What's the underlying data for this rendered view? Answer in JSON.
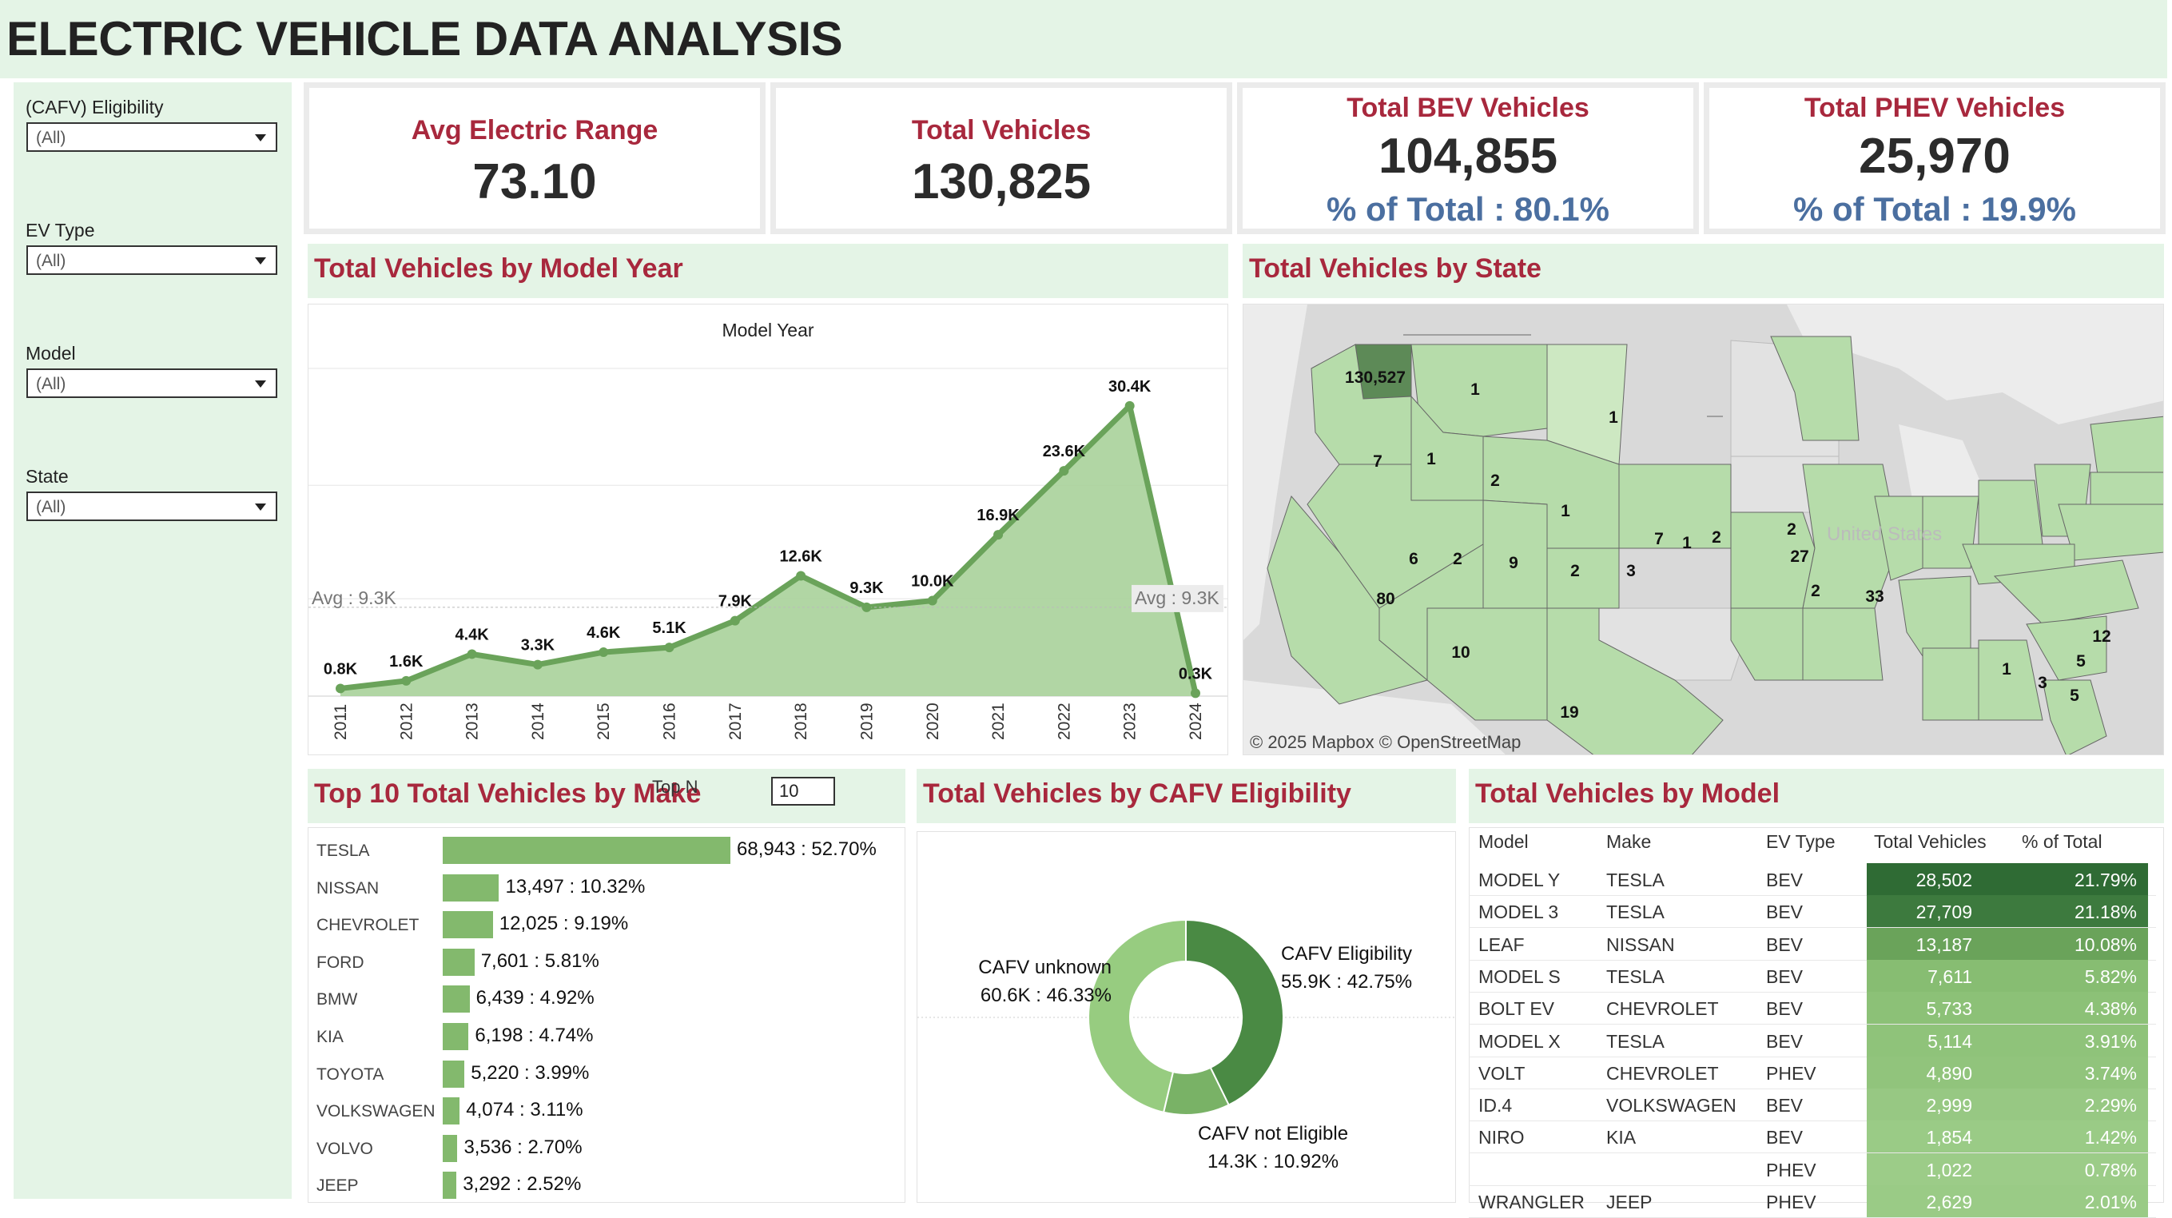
{
  "dashboard": {
    "title": "ELECTRIC VEHICLE DATA ANALYSIS"
  },
  "filters": [
    {
      "label": "(CAFV) Eligibility",
      "value": "(All)"
    },
    {
      "label": "EV Type",
      "value": "(All)"
    },
    {
      "label": "Model",
      "value": "(All)"
    },
    {
      "label": "State",
      "value": "(All)"
    }
  ],
  "kpis": {
    "avg_range": {
      "label": "Avg Electric Range",
      "value": "73.10"
    },
    "total": {
      "label": "Total Vehicles",
      "value": "130,825"
    },
    "bev": {
      "label": "Total BEV Vehicles",
      "value": "104,855",
      "pct": "% of Total : 80.1%"
    },
    "phev": {
      "label": "Total PHEV Vehicles",
      "value": "25,970",
      "pct": "% of Total : 19.9%"
    }
  },
  "sections": {
    "model_year": "Total Vehicles by Model Year",
    "state": "Total Vehicles by State",
    "make": "Top 10 Total Vehicles by Make",
    "cafv": "Total Vehicles by CAFV Eligibility",
    "model": "Total Vehicles by Model"
  },
  "chart_data": [
    {
      "type": "area",
      "title": "Model Year",
      "categories": [
        "2011",
        "2012",
        "2013",
        "2014",
        "2015",
        "2016",
        "2017",
        "2018",
        "2019",
        "2020",
        "2021",
        "2022",
        "2023",
        "2024"
      ],
      "values": [
        0.8,
        1.6,
        4.4,
        3.3,
        4.6,
        5.1,
        7.9,
        12.6,
        9.3,
        10.0,
        16.9,
        23.6,
        30.4,
        0.3
      ],
      "data_labels": [
        "0.8K",
        "1.6K",
        "4.4K",
        "3.3K",
        "4.6K",
        "5.1K",
        "7.9K",
        "12.6K",
        "9.3K",
        "10.0K",
        "16.9K",
        "23.6K",
        "30.4K",
        "0.3K"
      ],
      "reference_line": {
        "value": 9.3,
        "label": "Avg : 9.3K"
      },
      "ylim": [
        0,
        36
      ],
      "grid": true,
      "color": "#6aa35a"
    },
    {
      "type": "bar",
      "title": "Top 10 Total Vehicles by Make",
      "categories": [
        "TESLA",
        "NISSAN",
        "CHEVROLET",
        "FORD",
        "BMW",
        "KIA",
        "TOYOTA",
        "VOLKSWAGEN",
        "VOLVO",
        "JEEP"
      ],
      "values": [
        68943,
        13497,
        12025,
        7601,
        6439,
        6198,
        5220,
        4074,
        3536,
        3292
      ],
      "labels": [
        "68,943 : 52.70%",
        "13,497 : 10.32%",
        "12,025 : 9.19%",
        "7,601 : 5.81%",
        "6,439 : 4.92%",
        "6,198 : 4.74%",
        "5,220 : 3.99%",
        "4,074 : 3.11%",
        "3,536 : 2.70%",
        "3,292 : 2.52%"
      ],
      "color": "#83b96d"
    },
    {
      "type": "pie",
      "title": "Total Vehicles by CAFV Eligibility",
      "slices": [
        {
          "name": "CAFV Eligibility",
          "value": 42.75,
          "label": "55.9K : 42.75%",
          "color": "#4a8a44"
        },
        {
          "name": "CAFV not Eligible",
          "value": 10.92,
          "label": "14.3K : 10.92%",
          "color": "#79b266"
        },
        {
          "name": "CAFV unknown",
          "value": 46.33,
          "label": "60.6K : 46.33%",
          "color": "#97cc80"
        }
      ]
    }
  ],
  "top_n": {
    "label": "Top N",
    "value": "10"
  },
  "map": {
    "country_label": "United States",
    "attribution": "© 2025 Mapbox  © OpenStreetMap",
    "labels": [
      "130,527",
      "1",
      "1",
      "7",
      "1",
      "2",
      "1",
      "6",
      "2",
      "9",
      "2",
      "80",
      "10",
      "19",
      "3",
      "7",
      "1",
      "2",
      "2",
      "27",
      "2",
      "33",
      "12",
      "5",
      "1",
      "3",
      "5"
    ]
  },
  "model_table": {
    "columns": [
      "Model",
      "Make",
      "EV Type",
      "Total Vehicles",
      "% of Total"
    ],
    "rows": [
      {
        "model": "MODEL Y",
        "make": "TESLA",
        "type": "BEV",
        "total": "28,502",
        "pct": "21.79%"
      },
      {
        "model": "MODEL 3",
        "make": "TESLA",
        "type": "BEV",
        "total": "27,709",
        "pct": "21.18%"
      },
      {
        "model": "LEAF",
        "make": "NISSAN",
        "type": "BEV",
        "total": "13,187",
        "pct": "10.08%"
      },
      {
        "model": "MODEL S",
        "make": "TESLA",
        "type": "BEV",
        "total": "7,611",
        "pct": "5.82%"
      },
      {
        "model": "BOLT EV",
        "make": "CHEVROLET",
        "type": "BEV",
        "total": "5,733",
        "pct": "4.38%"
      },
      {
        "model": "MODEL X",
        "make": "TESLA",
        "type": "BEV",
        "total": "5,114",
        "pct": "3.91%"
      },
      {
        "model": "VOLT",
        "make": "CHEVROLET",
        "type": "PHEV",
        "total": "4,890",
        "pct": "3.74%"
      },
      {
        "model": "ID.4",
        "make": "VOLKSWAGEN",
        "type": "BEV",
        "total": "2,999",
        "pct": "2.29%"
      },
      {
        "model": "NIRO",
        "make": "KIA",
        "type": "BEV",
        "total": "1,854",
        "pct": "1.42%"
      },
      {
        "model": "",
        "make": "",
        "type": "PHEV",
        "total": "1,022",
        "pct": "0.78%"
      },
      {
        "model": "WRANGLER",
        "make": "JEEP",
        "type": "PHEV",
        "total": "2,629",
        "pct": "2.01%"
      }
    ]
  }
}
